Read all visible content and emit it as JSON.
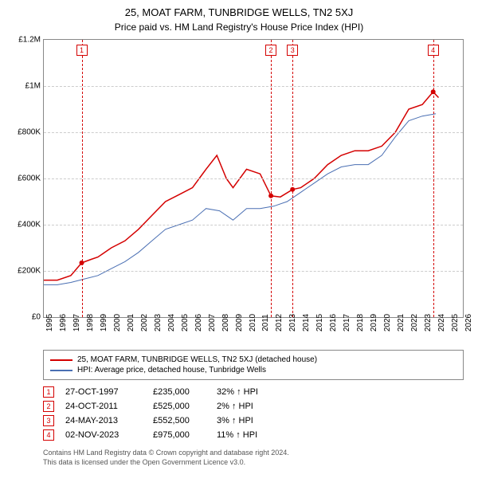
{
  "title": "25, MOAT FARM, TUNBRIDGE WELLS, TN2 5XJ",
  "subtitle": "Price paid vs. HM Land Registry's House Price Index (HPI)",
  "chart": {
    "type": "line",
    "background_color": "#ffffff",
    "grid_color": "#cccccc",
    "axis_color": "#888888",
    "x_years": [
      1995,
      1996,
      1997,
      1998,
      1999,
      2000,
      2001,
      2002,
      2003,
      2004,
      2005,
      2006,
      2007,
      2008,
      2009,
      2010,
      2011,
      2012,
      2013,
      2014,
      2015,
      2016,
      2017,
      2018,
      2019,
      2020,
      2021,
      2022,
      2023,
      2024,
      2025,
      2026
    ],
    "xlim": [
      1995,
      2026
    ],
    "ylim": [
      0,
      1200000
    ],
    "y_ticks": [
      0,
      200000,
      400000,
      600000,
      800000,
      1000000,
      1200000
    ],
    "y_tick_labels": [
      "£0",
      "£200K",
      "£400K",
      "£600K",
      "£800K",
      "£1M",
      "£1.2M"
    ],
    "series": [
      {
        "name": "25, MOAT FARM, TUNBRIDGE WELLS, TN2 5XJ (detached house)",
        "color": "#d40000",
        "line_width": 1.5,
        "points": [
          [
            1995.0,
            160000
          ],
          [
            1996.0,
            160000
          ],
          [
            1997.0,
            180000
          ],
          [
            1997.8,
            235000
          ],
          [
            1998.5,
            250000
          ],
          [
            1999.0,
            260000
          ],
          [
            2000.0,
            300000
          ],
          [
            2001.0,
            330000
          ],
          [
            2002.0,
            380000
          ],
          [
            2003.0,
            440000
          ],
          [
            2004.0,
            500000
          ],
          [
            2005.0,
            530000
          ],
          [
            2006.0,
            560000
          ],
          [
            2007.0,
            640000
          ],
          [
            2007.8,
            700000
          ],
          [
            2008.5,
            600000
          ],
          [
            2009.0,
            560000
          ],
          [
            2010.0,
            640000
          ],
          [
            2011.0,
            620000
          ],
          [
            2011.8,
            525000
          ],
          [
            2012.5,
            520000
          ],
          [
            2013.4,
            552500
          ],
          [
            2014.0,
            560000
          ],
          [
            2015.0,
            600000
          ],
          [
            2016.0,
            660000
          ],
          [
            2017.0,
            700000
          ],
          [
            2018.0,
            720000
          ],
          [
            2019.0,
            720000
          ],
          [
            2020.0,
            740000
          ],
          [
            2021.0,
            800000
          ],
          [
            2022.0,
            900000
          ],
          [
            2023.0,
            920000
          ],
          [
            2023.8,
            975000
          ],
          [
            2024.2,
            950000
          ]
        ]
      },
      {
        "name": "HPI: Average price, detached house, Tunbridge Wells",
        "color": "#4a6fb3",
        "line_width": 1,
        "points": [
          [
            1995.0,
            140000
          ],
          [
            1996.0,
            140000
          ],
          [
            1997.0,
            150000
          ],
          [
            1998.0,
            165000
          ],
          [
            1999.0,
            180000
          ],
          [
            2000.0,
            210000
          ],
          [
            2001.0,
            240000
          ],
          [
            2002.0,
            280000
          ],
          [
            2003.0,
            330000
          ],
          [
            2004.0,
            380000
          ],
          [
            2005.0,
            400000
          ],
          [
            2006.0,
            420000
          ],
          [
            2007.0,
            470000
          ],
          [
            2008.0,
            460000
          ],
          [
            2009.0,
            420000
          ],
          [
            2010.0,
            470000
          ],
          [
            2011.0,
            470000
          ],
          [
            2012.0,
            480000
          ],
          [
            2013.0,
            500000
          ],
          [
            2014.0,
            540000
          ],
          [
            2015.0,
            580000
          ],
          [
            2016.0,
            620000
          ],
          [
            2017.0,
            650000
          ],
          [
            2018.0,
            660000
          ],
          [
            2019.0,
            660000
          ],
          [
            2020.0,
            700000
          ],
          [
            2021.0,
            780000
          ],
          [
            2022.0,
            850000
          ],
          [
            2023.0,
            870000
          ],
          [
            2024.0,
            880000
          ]
        ]
      }
    ],
    "markers": [
      {
        "n": "1",
        "year": 1997.8,
        "color": "#d40000",
        "dot_y": 235000
      },
      {
        "n": "2",
        "year": 2011.8,
        "color": "#d40000",
        "dot_y": 525000
      },
      {
        "n": "3",
        "year": 2013.4,
        "color": "#d40000",
        "dot_y": 552500
      },
      {
        "n": "4",
        "year": 2023.8,
        "color": "#d40000",
        "dot_y": 975000
      }
    ]
  },
  "legend": {
    "items": [
      {
        "color": "#d40000",
        "label": "25, MOAT FARM, TUNBRIDGE WELLS, TN2 5XJ (detached house)"
      },
      {
        "color": "#4a6fb3",
        "label": "HPI: Average price, detached house, Tunbridge Wells"
      }
    ]
  },
  "sales": [
    {
      "n": "1",
      "date": "27-OCT-1997",
      "price": "£235,000",
      "diff": "32% ↑ HPI",
      "color": "#d40000"
    },
    {
      "n": "2",
      "date": "24-OCT-2011",
      "price": "£525,000",
      "diff": "2% ↑ HPI",
      "color": "#d40000"
    },
    {
      "n": "3",
      "date": "24-MAY-2013",
      "price": "£552,500",
      "diff": "3% ↑ HPI",
      "color": "#d40000"
    },
    {
      "n": "4",
      "date": "02-NOV-2023",
      "price": "£975,000",
      "diff": "11% ↑ HPI",
      "color": "#d40000"
    }
  ],
  "footer": {
    "line1": "Contains HM Land Registry data © Crown copyright and database right 2024.",
    "line2": "This data is licensed under the Open Government Licence v3.0."
  }
}
